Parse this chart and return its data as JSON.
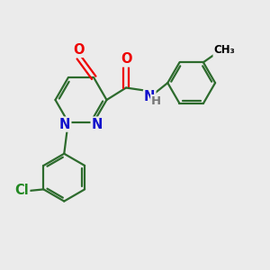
{
  "bg_color": "#ebebeb",
  "bond_color": "#2d6b2d",
  "bond_width": 1.6,
  "atom_colors": {
    "O": "#ee0000",
    "N": "#1111cc",
    "Cl": "#228822",
    "C": "#000000"
  },
  "font_size": 10.5,
  "font_size_small": 9.5,
  "font_size_ch3": 8.5
}
